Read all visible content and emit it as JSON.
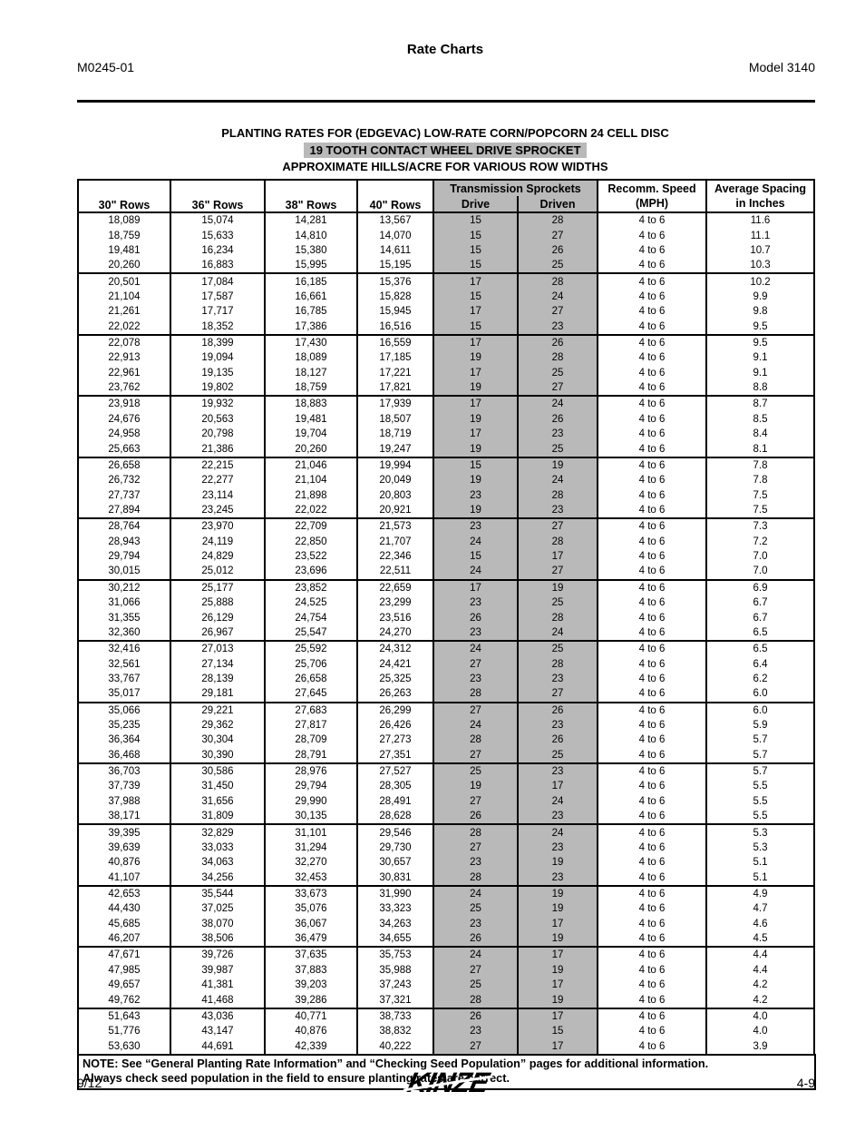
{
  "page_header": {
    "title": "Rate Charts",
    "doc_number": "M0245-01",
    "model": "Model 3140"
  },
  "table_titles": {
    "line1": "PLANTING RATES FOR (EDGEVAC) LOW-RATE CORN/POPCORN 24 CELL DISC",
    "line2": "19 TOOTH CONTACT WHEEL DRIVE SPROCKET",
    "line3": "APPROXIMATE HILLS/ACRE FOR VARIOUS ROW WIDTHS"
  },
  "colors": {
    "highlight_gray": "#b9b9b9"
  },
  "rate_table": {
    "column_headers": {
      "col_30": "30\" Rows",
      "col_36": "36\" Rows",
      "col_38": "38\" Rows",
      "col_40": "40\" Rows",
      "sprockets_group": "Transmission Sprockets",
      "drive": "Drive",
      "driven": "Driven",
      "speed_line1": "Recomm. Speed",
      "speed_line2": "(MPH)",
      "spacing_line1": "Average Spacing",
      "spacing_line2": "in Inches"
    },
    "group_size": 4,
    "rows": [
      [
        "18,089",
        "15,074",
        "14,281",
        "13,567",
        "15",
        "28",
        "4 to 6",
        "11.6"
      ],
      [
        "18,759",
        "15,633",
        "14,810",
        "14,070",
        "15",
        "27",
        "4 to 6",
        "11.1"
      ],
      [
        "19,481",
        "16,234",
        "15,380",
        "14,611",
        "15",
        "26",
        "4 to 6",
        "10.7"
      ],
      [
        "20,260",
        "16,883",
        "15,995",
        "15,195",
        "15",
        "25",
        "4 to 6",
        "10.3"
      ],
      [
        "20,501",
        "17,084",
        "16,185",
        "15,376",
        "17",
        "28",
        "4 to 6",
        "10.2"
      ],
      [
        "21,104",
        "17,587",
        "16,661",
        "15,828",
        "15",
        "24",
        "4 to 6",
        "9.9"
      ],
      [
        "21,261",
        "17,717",
        "16,785",
        "15,945",
        "17",
        "27",
        "4 to 6",
        "9.8"
      ],
      [
        "22,022",
        "18,352",
        "17,386",
        "16,516",
        "15",
        "23",
        "4 to 6",
        "9.5"
      ],
      [
        "22,078",
        "18,399",
        "17,430",
        "16,559",
        "17",
        "26",
        "4 to 6",
        "9.5"
      ],
      [
        "22,913",
        "19,094",
        "18,089",
        "17,185",
        "19",
        "28",
        "4 to 6",
        "9.1"
      ],
      [
        "22,961",
        "19,135",
        "18,127",
        "17,221",
        "17",
        "25",
        "4 to 6",
        "9.1"
      ],
      [
        "23,762",
        "19,802",
        "18,759",
        "17,821",
        "19",
        "27",
        "4 to 6",
        "8.8"
      ],
      [
        "23,918",
        "19,932",
        "18,883",
        "17,939",
        "17",
        "24",
        "4 to 6",
        "8.7"
      ],
      [
        "24,676",
        "20,563",
        "19,481",
        "18,507",
        "19",
        "26",
        "4 to 6",
        "8.5"
      ],
      [
        "24,958",
        "20,798",
        "19,704",
        "18,719",
        "17",
        "23",
        "4 to 6",
        "8.4"
      ],
      [
        "25,663",
        "21,386",
        "20,260",
        "19,247",
        "19",
        "25",
        "4 to 6",
        "8.1"
      ],
      [
        "26,658",
        "22,215",
        "21,046",
        "19,994",
        "15",
        "19",
        "4 to 6",
        "7.8"
      ],
      [
        "26,732",
        "22,277",
        "21,104",
        "20,049",
        "19",
        "24",
        "4 to 6",
        "7.8"
      ],
      [
        "27,737",
        "23,114",
        "21,898",
        "20,803",
        "23",
        "28",
        "4 to 6",
        "7.5"
      ],
      [
        "27,894",
        "23,245",
        "22,022",
        "20,921",
        "19",
        "23",
        "4 to 6",
        "7.5"
      ],
      [
        "28,764",
        "23,970",
        "22,709",
        "21,573",
        "23",
        "27",
        "4 to 6",
        "7.3"
      ],
      [
        "28,943",
        "24,119",
        "22,850",
        "21,707",
        "24",
        "28",
        "4 to 6",
        "7.2"
      ],
      [
        "29,794",
        "24,829",
        "23,522",
        "22,346",
        "15",
        "17",
        "4 to 6",
        "7.0"
      ],
      [
        "30,015",
        "25,012",
        "23,696",
        "22,511",
        "24",
        "27",
        "4 to 6",
        "7.0"
      ],
      [
        "30,212",
        "25,177",
        "23,852",
        "22,659",
        "17",
        "19",
        "4 to 6",
        "6.9"
      ],
      [
        "31,066",
        "25,888",
        "24,525",
        "23,299",
        "23",
        "25",
        "4 to 6",
        "6.7"
      ],
      [
        "31,355",
        "26,129",
        "24,754",
        "23,516",
        "26",
        "28",
        "4 to 6",
        "6.7"
      ],
      [
        "32,360",
        "26,967",
        "25,547",
        "24,270",
        "23",
        "24",
        "4 to 6",
        "6.5"
      ],
      [
        "32,416",
        "27,013",
        "25,592",
        "24,312",
        "24",
        "25",
        "4 to 6",
        "6.5"
      ],
      [
        "32,561",
        "27,134",
        "25,706",
        "24,421",
        "27",
        "28",
        "4 to 6",
        "6.4"
      ],
      [
        "33,767",
        "28,139",
        "26,658",
        "25,325",
        "23",
        "23",
        "4 to 6",
        "6.2"
      ],
      [
        "35,017",
        "29,181",
        "27,645",
        "26,263",
        "28",
        "27",
        "4 to 6",
        "6.0"
      ],
      [
        "35,066",
        "29,221",
        "27,683",
        "26,299",
        "27",
        "26",
        "4 to 6",
        "6.0"
      ],
      [
        "35,235",
        "29,362",
        "27,817",
        "26,426",
        "24",
        "23",
        "4 to 6",
        "5.9"
      ],
      [
        "36,364",
        "30,304",
        "28,709",
        "27,273",
        "28",
        "26",
        "4 to 6",
        "5.7"
      ],
      [
        "36,468",
        "30,390",
        "28,791",
        "27,351",
        "27",
        "25",
        "4 to 6",
        "5.7"
      ],
      [
        "36,703",
        "30,586",
        "28,976",
        "27,527",
        "25",
        "23",
        "4 to 6",
        "5.7"
      ],
      [
        "37,739",
        "31,450",
        "29,794",
        "28,305",
        "19",
        "17",
        "4 to 6",
        "5.5"
      ],
      [
        "37,988",
        "31,656",
        "29,990",
        "28,491",
        "27",
        "24",
        "4 to 6",
        "5.5"
      ],
      [
        "38,171",
        "31,809",
        "30,135",
        "28,628",
        "26",
        "23",
        "4 to 6",
        "5.5"
      ],
      [
        "39,395",
        "32,829",
        "31,101",
        "29,546",
        "28",
        "24",
        "4 to 6",
        "5.3"
      ],
      [
        "39,639",
        "33,033",
        "31,294",
        "29,730",
        "27",
        "23",
        "4 to 6",
        "5.3"
      ],
      [
        "40,876",
        "34,063",
        "32,270",
        "30,657",
        "23",
        "19",
        "4 to 6",
        "5.1"
      ],
      [
        "41,107",
        "34,256",
        "32,453",
        "30,831",
        "28",
        "23",
        "4 to 6",
        "5.1"
      ],
      [
        "42,653",
        "35,544",
        "33,673",
        "31,990",
        "24",
        "19",
        "4 to 6",
        "4.9"
      ],
      [
        "44,430",
        "37,025",
        "35,076",
        "33,323",
        "25",
        "19",
        "4 to 6",
        "4.7"
      ],
      [
        "45,685",
        "38,070",
        "36,067",
        "34,263",
        "23",
        "17",
        "4 to 6",
        "4.6"
      ],
      [
        "46,207",
        "38,506",
        "36,479",
        "34,655",
        "26",
        "19",
        "4 to 6",
        "4.5"
      ],
      [
        "47,671",
        "39,726",
        "37,635",
        "35,753",
        "24",
        "17",
        "4 to 6",
        "4.4"
      ],
      [
        "47,985",
        "39,987",
        "37,883",
        "35,988",
        "27",
        "19",
        "4 to 6",
        "4.4"
      ],
      [
        "49,657",
        "41,381",
        "39,203",
        "37,243",
        "25",
        "17",
        "4 to 6",
        "4.2"
      ],
      [
        "49,762",
        "41,468",
        "39,286",
        "37,321",
        "28",
        "19",
        "4 to 6",
        "4.2"
      ],
      [
        "51,643",
        "43,036",
        "40,771",
        "38,733",
        "26",
        "17",
        "4 to 6",
        "4.0"
      ],
      [
        "51,776",
        "43,147",
        "40,876",
        "38,832",
        "23",
        "15",
        "4 to 6",
        "4.0"
      ],
      [
        "53,630",
        "44,691",
        "42,339",
        "40,222",
        "27",
        "17",
        "4 to 6",
        "3.9"
      ]
    ]
  },
  "note": {
    "line1": "NOTE: See “General Planting Rate Information” and “Checking Seed Population” pages for additional information.",
    "line2": "Always check seed population in the field to ensure planting rates are correct."
  },
  "footer": {
    "date_code": "9/12",
    "logo_text": "KINZE",
    "page_number": "4-9"
  }
}
